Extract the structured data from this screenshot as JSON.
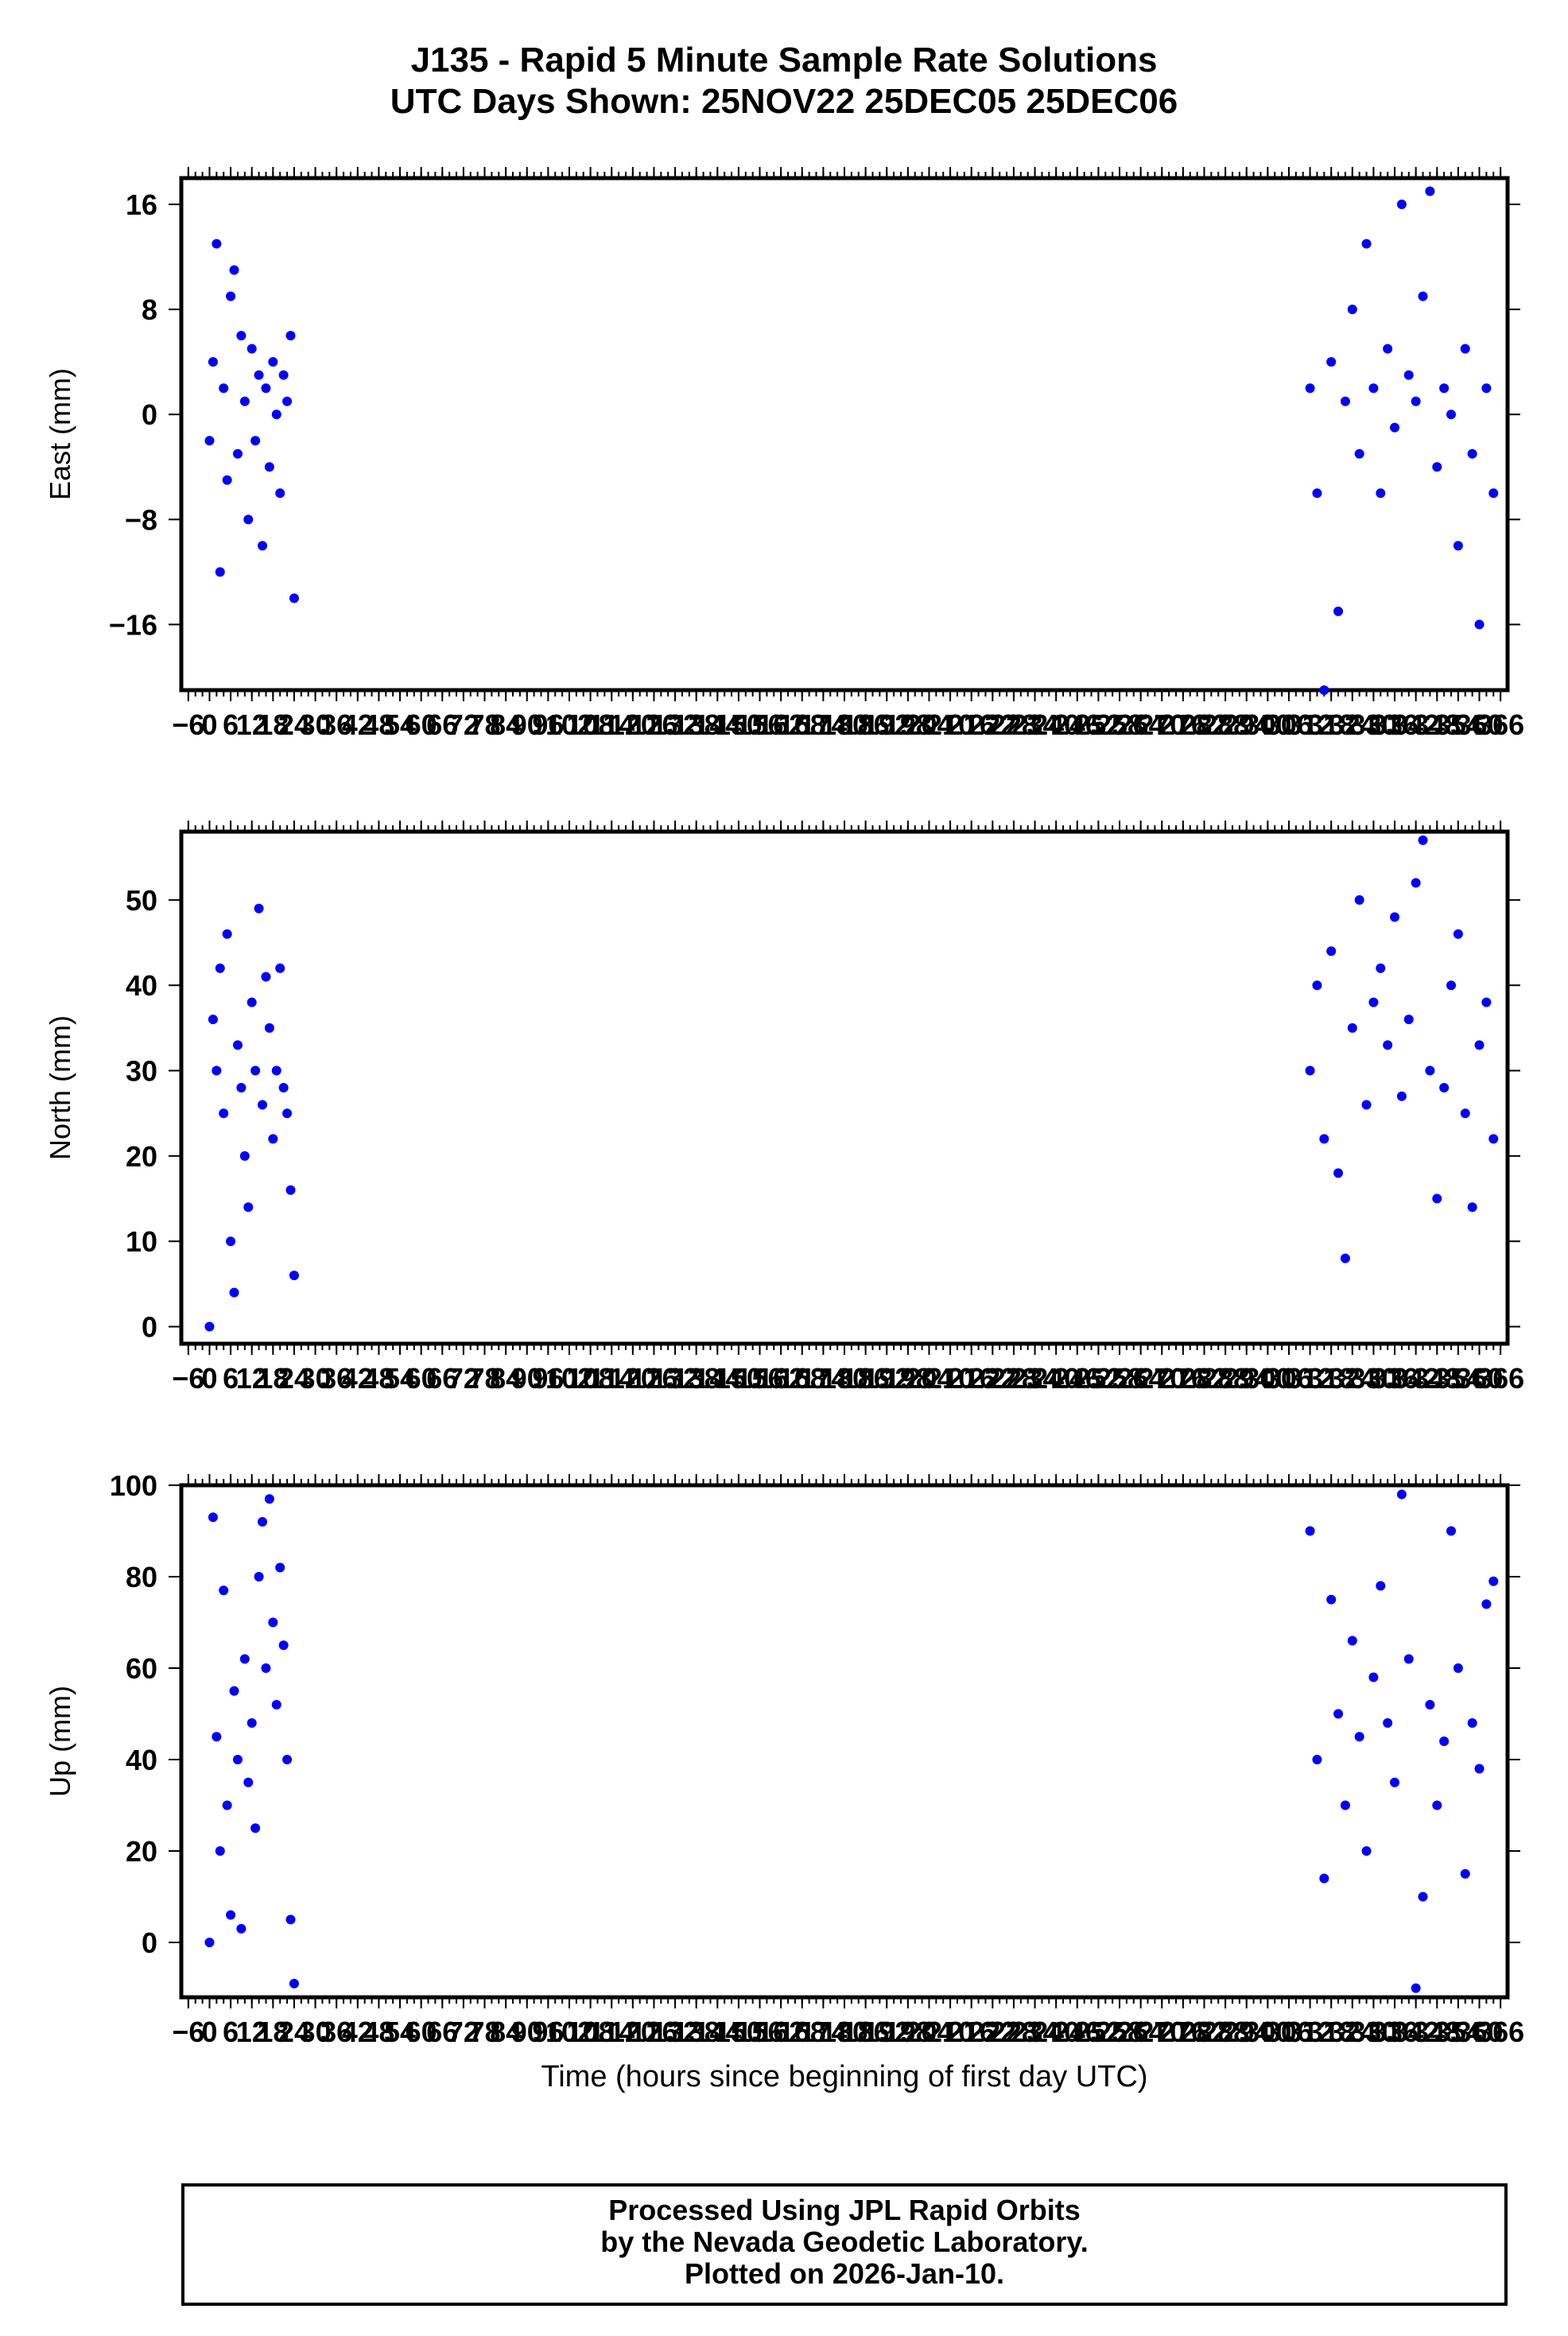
{
  "title": {
    "line1": "J135 - Rapid 5 Minute Sample Rate Solutions",
    "line2": "UTC Days Shown:  25NOV22 25DEC05 25DEC06"
  },
  "footer": {
    "line1": "Processed Using JPL Rapid Orbits",
    "line2": "by the Nevada Geodetic Laboratory.",
    "line3": "Plotted on 2026-Jan-10."
  },
  "colors": {
    "points": "#0000ff",
    "axes": "#000000"
  },
  "chart_data": [
    {
      "type": "scatter",
      "ylabel": "East (mm)",
      "xlabel": "",
      "xlim": [
        -8,
        368
      ],
      "ylim": [
        -21,
        18
      ],
      "yticks": [
        -16,
        -8,
        0,
        8,
        16
      ],
      "xticks": [
        -6,
        0,
        6,
        12,
        18,
        24,
        30,
        36,
        42,
        48,
        54,
        60,
        66,
        72,
        78,
        84,
        90,
        96,
        102,
        108,
        114,
        120,
        126,
        132,
        138,
        144,
        150,
        156,
        162,
        168,
        174,
        180,
        186,
        192,
        198,
        204,
        210,
        216,
        222,
        228,
        234,
        240,
        246,
        252,
        258,
        264,
        270,
        276,
        282,
        288,
        294,
        300,
        306,
        312,
        318,
        324,
        330,
        336,
        342,
        348,
        354,
        360,
        366
      ],
      "series": [
        {
          "x": [
            0,
            1,
            2,
            3,
            4,
            5,
            6,
            7,
            8,
            9,
            10,
            11,
            12,
            13,
            14,
            15,
            16,
            17,
            18,
            19,
            20,
            21,
            22,
            23,
            24,
            312,
            314,
            316,
            318,
            320,
            322,
            324,
            326,
            328,
            330,
            332,
            334,
            336,
            338,
            340,
            342,
            344,
            346,
            348,
            350,
            352,
            354,
            356,
            358,
            360,
            362,
            364
          ],
          "y": [
            -2,
            4,
            13,
            -12,
            2,
            -5,
            9,
            11,
            -3,
            6,
            1,
            -8,
            5,
            -2,
            3,
            -10,
            2,
            -4,
            4,
            0,
            -6,
            3,
            1,
            6,
            -14,
            2,
            -6,
            -21,
            4,
            -15,
            1,
            8,
            -3,
            13,
            2,
            -6,
            5,
            -1,
            16,
            3,
            1,
            9,
            17,
            -4,
            2,
            0,
            -10,
            5,
            -3,
            -16,
            2,
            -6
          ]
        }
      ]
    },
    {
      "type": "scatter",
      "ylabel": "North (mm)",
      "xlabel": "",
      "xlim": [
        -8,
        368
      ],
      "ylim": [
        -2,
        58
      ],
      "yticks": [
        0,
        10,
        20,
        30,
        40,
        50
      ],
      "xticks": [
        -6,
        0,
        6,
        12,
        18,
        24,
        30,
        36,
        42,
        48,
        54,
        60,
        66,
        72,
        78,
        84,
        90,
        96,
        102,
        108,
        114,
        120,
        126,
        132,
        138,
        144,
        150,
        156,
        162,
        168,
        174,
        180,
        186,
        192,
        198,
        204,
        210,
        216,
        222,
        228,
        234,
        240,
        246,
        252,
        258,
        264,
        270,
        276,
        282,
        288,
        294,
        300,
        306,
        312,
        318,
        324,
        330,
        336,
        342,
        348,
        354,
        360,
        366
      ],
      "series": [
        {
          "x": [
            0,
            1,
            2,
            3,
            4,
            5,
            6,
            7,
            8,
            9,
            10,
            11,
            12,
            13,
            14,
            15,
            16,
            17,
            18,
            19,
            20,
            21,
            22,
            23,
            24,
            312,
            314,
            316,
            318,
            320,
            322,
            324,
            326,
            328,
            330,
            332,
            334,
            336,
            338,
            340,
            342,
            344,
            346,
            348,
            350,
            352,
            354,
            356,
            358,
            360,
            362,
            364
          ],
          "y": [
            0,
            36,
            30,
            42,
            25,
            46,
            10,
            4,
            33,
            28,
            20,
            14,
            38,
            30,
            49,
            26,
            41,
            35,
            22,
            30,
            42,
            28,
            25,
            16,
            6,
            30,
            40,
            22,
            44,
            18,
            8,
            35,
            50,
            26,
            38,
            42,
            33,
            48,
            27,
            36,
            52,
            57,
            30,
            15,
            28,
            40,
            46,
            25,
            14,
            33,
            38,
            22
          ]
        }
      ]
    },
    {
      "type": "scatter",
      "ylabel": "Up (mm)",
      "xlabel": "Time (hours since beginning of first day UTC)",
      "xlim": [
        -8,
        368
      ],
      "ylim": [
        -12,
        100
      ],
      "yticks": [
        0,
        20,
        40,
        60,
        80,
        100
      ],
      "xticks": [
        -6,
        0,
        6,
        12,
        18,
        24,
        30,
        36,
        42,
        48,
        54,
        60,
        66,
        72,
        78,
        84,
        90,
        96,
        102,
        108,
        114,
        120,
        126,
        132,
        138,
        144,
        150,
        156,
        162,
        168,
        174,
        180,
        186,
        192,
        198,
        204,
        210,
        216,
        222,
        228,
        234,
        240,
        246,
        252,
        258,
        264,
        270,
        276,
        282,
        288,
        294,
        300,
        306,
        312,
        318,
        324,
        330,
        336,
        342,
        348,
        354,
        360,
        366
      ],
      "series": [
        {
          "x": [
            0,
            1,
            2,
            3,
            4,
            5,
            6,
            7,
            8,
            9,
            10,
            11,
            12,
            13,
            14,
            15,
            16,
            17,
            18,
            19,
            20,
            21,
            22,
            23,
            24,
            312,
            314,
            316,
            318,
            320,
            322,
            324,
            326,
            328,
            330,
            332,
            334,
            336,
            338,
            340,
            342,
            344,
            346,
            348,
            350,
            352,
            354,
            356,
            358,
            360,
            362,
            364
          ],
          "y": [
            0,
            93,
            45,
            20,
            77,
            30,
            6,
            55,
            40,
            3,
            62,
            35,
            48,
            25,
            80,
            92,
            60,
            97,
            70,
            52,
            82,
            65,
            40,
            5,
            -9,
            90,
            40,
            14,
            75,
            50,
            30,
            66,
            45,
            20,
            58,
            78,
            48,
            35,
            98,
            62,
            -10,
            10,
            52,
            30,
            44,
            90,
            60,
            15,
            48,
            38,
            74,
            79
          ]
        }
      ]
    }
  ]
}
